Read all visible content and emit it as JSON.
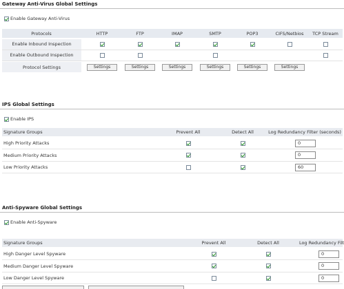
{
  "gateway_av": {
    "title": "Gateway Anti-Virus Global Settings",
    "enable": {
      "label": "Enable Gateway Anti-Virus",
      "checked": true
    },
    "table": {
      "header": [
        "Protocols",
        "HTTP",
        "FTP",
        "IMAP",
        "SMTP",
        "POP3",
        "CIFS/Netbios",
        "TCP Stream"
      ],
      "rows": [
        {
          "label": "Enable Inbound Inspection",
          "checks": [
            true,
            true,
            true,
            true,
            true,
            false,
            false
          ]
        },
        {
          "label": "Enable Outbound Inspection",
          "checks": [
            false,
            false,
            null,
            false,
            null,
            null,
            false
          ]
        }
      ],
      "settings_row": {
        "label": "Protocol Settings",
        "buttons": [
          "Settings",
          "Settings",
          "Settings",
          "Settings",
          "Settings",
          "Settings"
        ]
      }
    }
  },
  "ips": {
    "title": "IPS Global Settings",
    "enable": {
      "label": "Enable IPS",
      "checked": true
    },
    "table": {
      "header": [
        "Signature Groups",
        "Prevent All",
        "Detect All",
        "Log Redundancy Filter (seconds)"
      ],
      "rows": [
        {
          "label": "High Priority Attacks",
          "prevent": true,
          "detect": true,
          "log": "0"
        },
        {
          "label": "Medium Priority Attacks",
          "prevent": true,
          "detect": true,
          "log": "0"
        },
        {
          "label": "Low Priority Attacks",
          "prevent": false,
          "detect": true,
          "log": "60"
        }
      ]
    }
  },
  "anti_spyware": {
    "title": "Anti-Spyware Global Settings",
    "enable": {
      "label": "Enable Anti-Spyware",
      "checked": true
    },
    "table": {
      "header": [
        "Signature Groups",
        "Prevent All",
        "Detect All",
        "Log Redundancy Filter"
      ],
      "rows": [
        {
          "label": "High Danger Level Spyware",
          "prevent": true,
          "detect": true,
          "log": "0"
        },
        {
          "label": "Medium Danger Level Spyware",
          "prevent": true,
          "detect": true,
          "log": "0"
        },
        {
          "label": "Low Danger Level Spyware",
          "prevent": false,
          "detect": true,
          "log": "0"
        }
      ]
    }
  }
}
